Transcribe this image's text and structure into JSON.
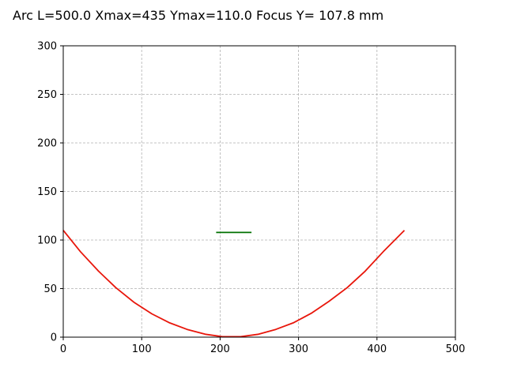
{
  "chart_data": {
    "type": "line",
    "title": "Arc L=500.0 Xmax=435 Ymax=110.0 Focus Y= 107.8 mm",
    "xlabel": "",
    "ylabel": "",
    "xlim": [
      0,
      500
    ],
    "ylim": [
      0,
      300
    ],
    "x_ticks": [
      "0",
      "100",
      "200",
      "300",
      "400",
      "500"
    ],
    "y_ticks": [
      "0",
      "50",
      "100",
      "150",
      "200",
      "250",
      "300"
    ],
    "grid": true,
    "series": [
      {
        "color": "#e8160b",
        "x": [
          0,
          22,
          45,
          67,
          90,
          113,
          135,
          158,
          181,
          203,
          226,
          249,
          271,
          294,
          317,
          339,
          362,
          385,
          408,
          435
        ],
        "y": [
          110,
          88,
          68,
          51,
          36,
          24,
          15,
          8,
          3,
          0.5,
          0.5,
          3,
          8,
          15,
          25,
          37,
          51,
          68,
          88,
          110
        ]
      },
      {
        "color": "#007000",
        "x": [
          195,
          240
        ],
        "y": [
          107.8,
          107.8
        ]
      }
    ]
  }
}
